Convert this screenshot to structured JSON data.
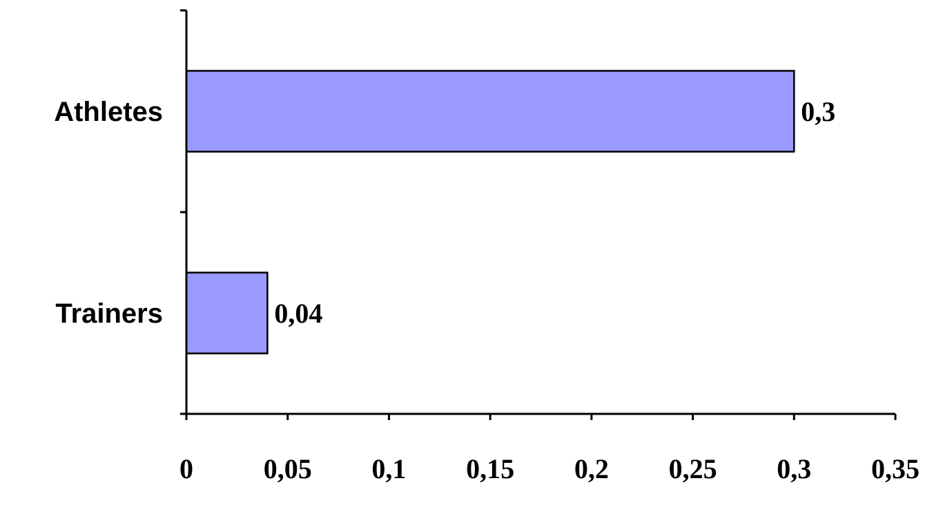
{
  "chart_data": {
    "type": "bar",
    "orientation": "horizontal",
    "categories": [
      "Athletes",
      "Trainers"
    ],
    "values": [
      0.3,
      0.04
    ],
    "data_labels": [
      "0,3",
      "0,04"
    ],
    "xlim": [
      0,
      0.35
    ],
    "x_ticks": [
      0,
      0.05,
      0.1,
      0.15,
      0.2,
      0.25,
      0.3,
      0.35
    ],
    "x_tick_labels": [
      "0",
      "0,05",
      "0,1",
      "0,15",
      "0,2",
      "0,25",
      "0,3",
      "0,35"
    ],
    "title": "",
    "xlabel": "",
    "ylabel": "",
    "grid": false,
    "legend": "none",
    "colors": {
      "bar_fill": "#9999ff",
      "bar_stroke": "#000000",
      "axis": "#000000"
    }
  }
}
